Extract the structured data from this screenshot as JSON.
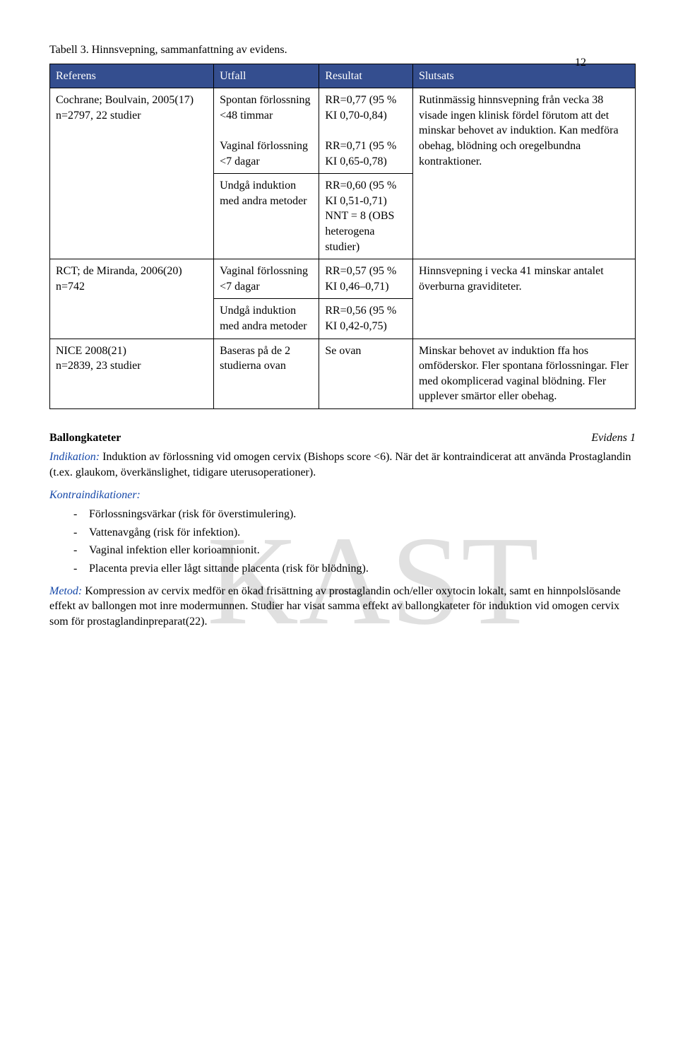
{
  "page_number": "12",
  "caption": "Tabell 3. Hinnsvepning, sammanfattning av evidens.",
  "watermark": "KAST",
  "table": {
    "headers": {
      "ref": "Referens",
      "utfall": "Utfall",
      "resultat": "Resultat",
      "slutsats": "Slutsats"
    },
    "groups": [
      {
        "ref": "Cochrane; Boulvain, 2005(17)\nn=2797, 22 studier",
        "slutsats": "Rutinmässig hinnsvepning från vecka 38 visade ingen klinisk fördel förutom att det minskar behovet av induktion. Kan medföra obehag, blödning och oregelbundna kontraktioner.",
        "rows": [
          {
            "utfall": "Spontan förlossning <48 timmar\n\nVaginal förlossning <7 dagar",
            "resultat": "RR=0,77 (95 % KI 0,70-0,84)\n\nRR=0,71 (95 % KI 0,65-0,78)"
          },
          {
            "utfall": "Undgå induktion med andra metoder",
            "resultat": "RR=0,60 (95 % KI 0,51-0,71) NNT = 8 (OBS heterogena studier)"
          }
        ]
      },
      {
        "ref": "RCT; de Miranda, 2006(20) n=742",
        "slutsats": "Hinnsvepning i vecka 41 minskar antalet överburna graviditeter.",
        "rows": [
          {
            "utfall": "Vaginal förlossning <7 dagar",
            "resultat": "RR=0,57 (95 % KI 0,46–0,71)"
          },
          {
            "utfall": "Undgå induktion med andra metoder",
            "resultat": "RR=0,56 (95 % KI 0,42-0,75)"
          }
        ]
      },
      {
        "ref": "NICE 2008(21)\nn=2839, 23 studier",
        "slutsats": "Minskar behovet av induktion ffa hos omföderskor. Fler spontana förlossningar. Fler med okomplicerad vaginal blödning. Fler upplever smärtor eller obehag.",
        "rows": [
          {
            "utfall": "Baseras på de 2 studierna ovan",
            "resultat": "Se ovan"
          }
        ]
      }
    ]
  },
  "section": {
    "title": "Ballongkateter",
    "evidens": "Evidens 1",
    "indik_label": "Indikation:",
    "indik_text": " Induktion av förlossning vid omogen cervix (Bishops score <6). När det är kontraindicerat att använda Prostaglandin (t.ex. glaukom, överkänslighet, tidigare uterusoperationer).",
    "kontra_label": "Kontraindikationer:",
    "kontra": [
      "Förlossningsvärkar (risk för överstimulering).",
      "Vattenavgång (risk för infektion).",
      "Vaginal infektion eller korioamnionit.",
      "Placenta previa eller lågt sittande placenta (risk för blödning)."
    ],
    "metod_label": "Metod:",
    "metod_text": " Kompression av cervix medför en ökad frisättning av prostaglandin och/eller oxytocin lokalt, samt en hinnpolslösande effekt av ballongen mot inre modermunnen. Studier har visat samma effekt av ballongkateter för induktion vid omogen cervix som för prostaglandinpreparat(22)."
  }
}
